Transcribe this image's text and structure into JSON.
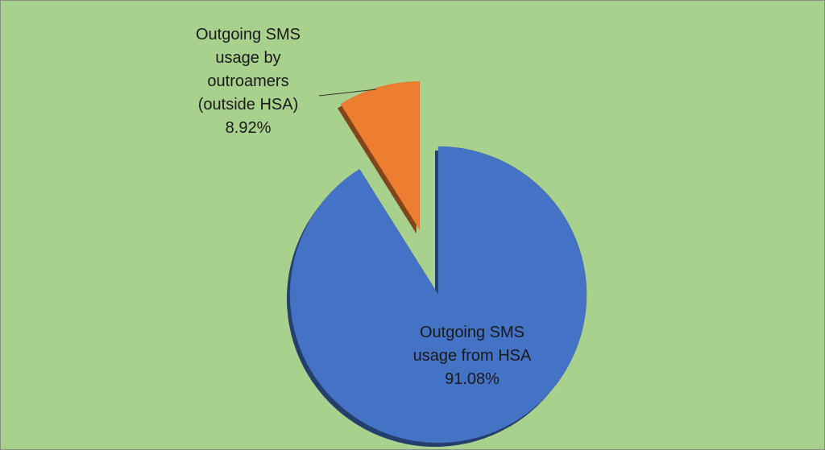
{
  "chart_data": {
    "type": "pie",
    "categories": [
      "Outgoing SMS usage from HSA",
      "Outgoing SMS usage by outroamers (outside HSA)"
    ],
    "values": [
      91.08,
      8.92
    ],
    "value_labels": [
      "91.08%",
      "8.92%"
    ],
    "colors": [
      "#4472c4",
      "#ed7d31"
    ]
  }
}
